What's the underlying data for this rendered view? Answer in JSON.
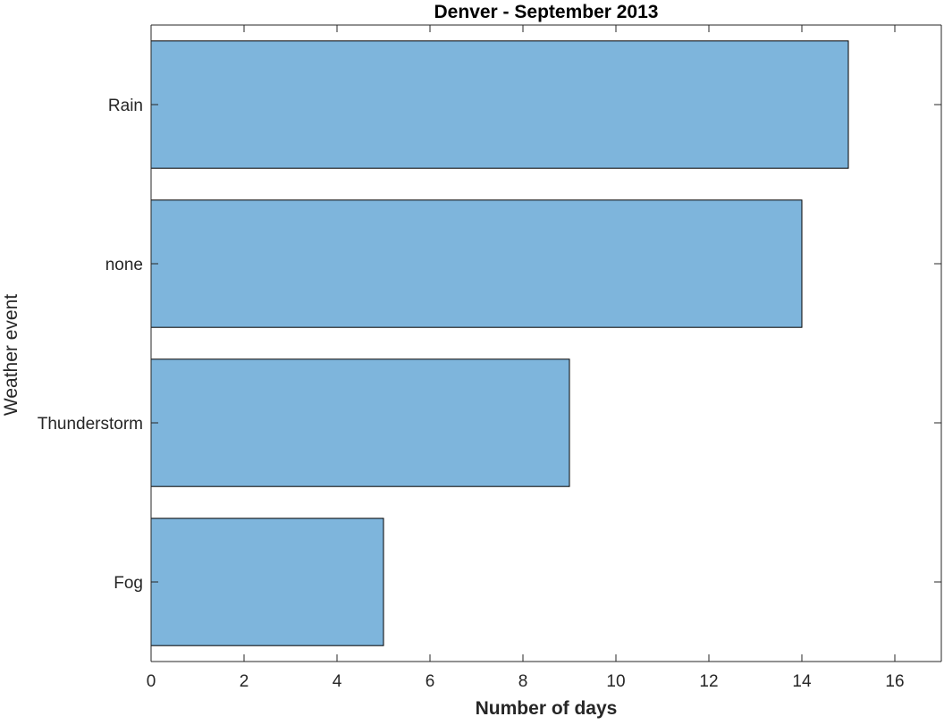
{
  "chart_data": {
    "type": "bar",
    "orientation": "horizontal",
    "title": "Denver - September 2013",
    "xlabel": "Number of days",
    "ylabel": "Weather event",
    "categories": [
      "Rain",
      "none",
      "Thunderstorm",
      "Fog"
    ],
    "values": [
      15,
      14,
      9,
      5
    ],
    "xlim": [
      0,
      17
    ],
    "xticks": [
      0,
      2,
      4,
      6,
      8,
      10,
      12,
      14,
      16
    ],
    "grid": false,
    "legend": "none",
    "colors": {
      "bar_fill": "#7EB5DC",
      "bar_edge": "#000000",
      "axis": "#262626"
    }
  }
}
